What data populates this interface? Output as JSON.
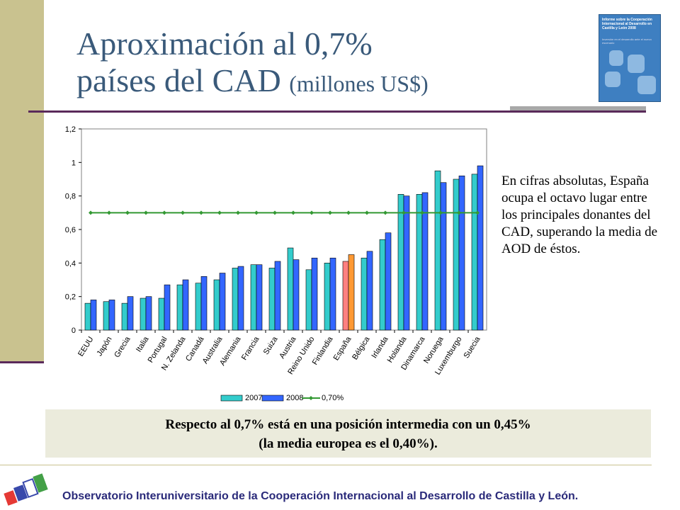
{
  "title": {
    "line1": "Aproximación al 0,7%",
    "line2_main": "países del CAD",
    "line2_sub": "(millones US$)"
  },
  "cover": {
    "title": "Informe sobre la Cooperación Internacional al Desarrollo en Castilla y León 2008",
    "subtitle": "Inversión en el desarrollo ante el nuevo escenario"
  },
  "side_text": "En cifras absolutas, España ocupa el octavo lugar entre los principales donantes del CAD, superando la media de AOD de éstos.",
  "note": {
    "line1": "Respecto al 0,7% está en una posición intermedia con un 0,45%",
    "line2": "(la media europea es el 0,40%)."
  },
  "footer": "Observatorio Interuniversitario de la Cooperación Internacional al Desarrollo de Castilla y León.",
  "colors": {
    "series_2007": "#33cccc",
    "series_2008": "#3366ff",
    "highlight_2007": "#ff8080",
    "highlight_2008": "#ff9933",
    "target_line": "#339933",
    "title": "#3a5a7a",
    "footer": "#2a2a7a"
  },
  "chart_data": {
    "type": "bar",
    "categories": [
      "EEUU",
      "Japón",
      "Grecia",
      "Italia",
      "Portugal",
      "N. Zelanda",
      "Canadá",
      "Australia",
      "Alemania",
      "Francia",
      "Suiza",
      "Austria",
      "Reino Unido",
      "Finlandia",
      "España",
      "Bélgica",
      "Irlanda",
      "Holanda",
      "Dinamarca",
      "Noruega",
      "Luxemburgo",
      "Suecia"
    ],
    "series": [
      {
        "name": "2007",
        "values": [
          0.16,
          0.17,
          0.16,
          0.19,
          0.19,
          0.27,
          0.28,
          0.3,
          0.37,
          0.39,
          0.37,
          0.49,
          0.36,
          0.4,
          0.41,
          0.43,
          0.54,
          0.81,
          0.81,
          0.95,
          0.9,
          0.93
        ]
      },
      {
        "name": "2008",
        "values": [
          0.18,
          0.18,
          0.2,
          0.2,
          0.27,
          0.3,
          0.32,
          0.34,
          0.38,
          0.39,
          0.41,
          0.42,
          0.43,
          0.43,
          0.45,
          0.47,
          0.58,
          0.8,
          0.82,
          0.88,
          0.92,
          0.98
        ]
      },
      {
        "name": "0,70%",
        "values": [
          0.7,
          0.7,
          0.7,
          0.7,
          0.7,
          0.7,
          0.7,
          0.7,
          0.7,
          0.7,
          0.7,
          0.7,
          0.7,
          0.7,
          0.7,
          0.7,
          0.7,
          0.7,
          0.7,
          0.7,
          0.7,
          0.7
        ]
      }
    ],
    "highlight_category": "España",
    "ylim": [
      0,
      1.2
    ],
    "yticks": [
      "0",
      "0,2",
      "0,4",
      "0,6",
      "0,8",
      "1",
      "1,2"
    ],
    "ytick_values": [
      0,
      0.2,
      0.4,
      0.6,
      0.8,
      1.0,
      1.2
    ],
    "grid": false,
    "legend_position": "bottom"
  }
}
